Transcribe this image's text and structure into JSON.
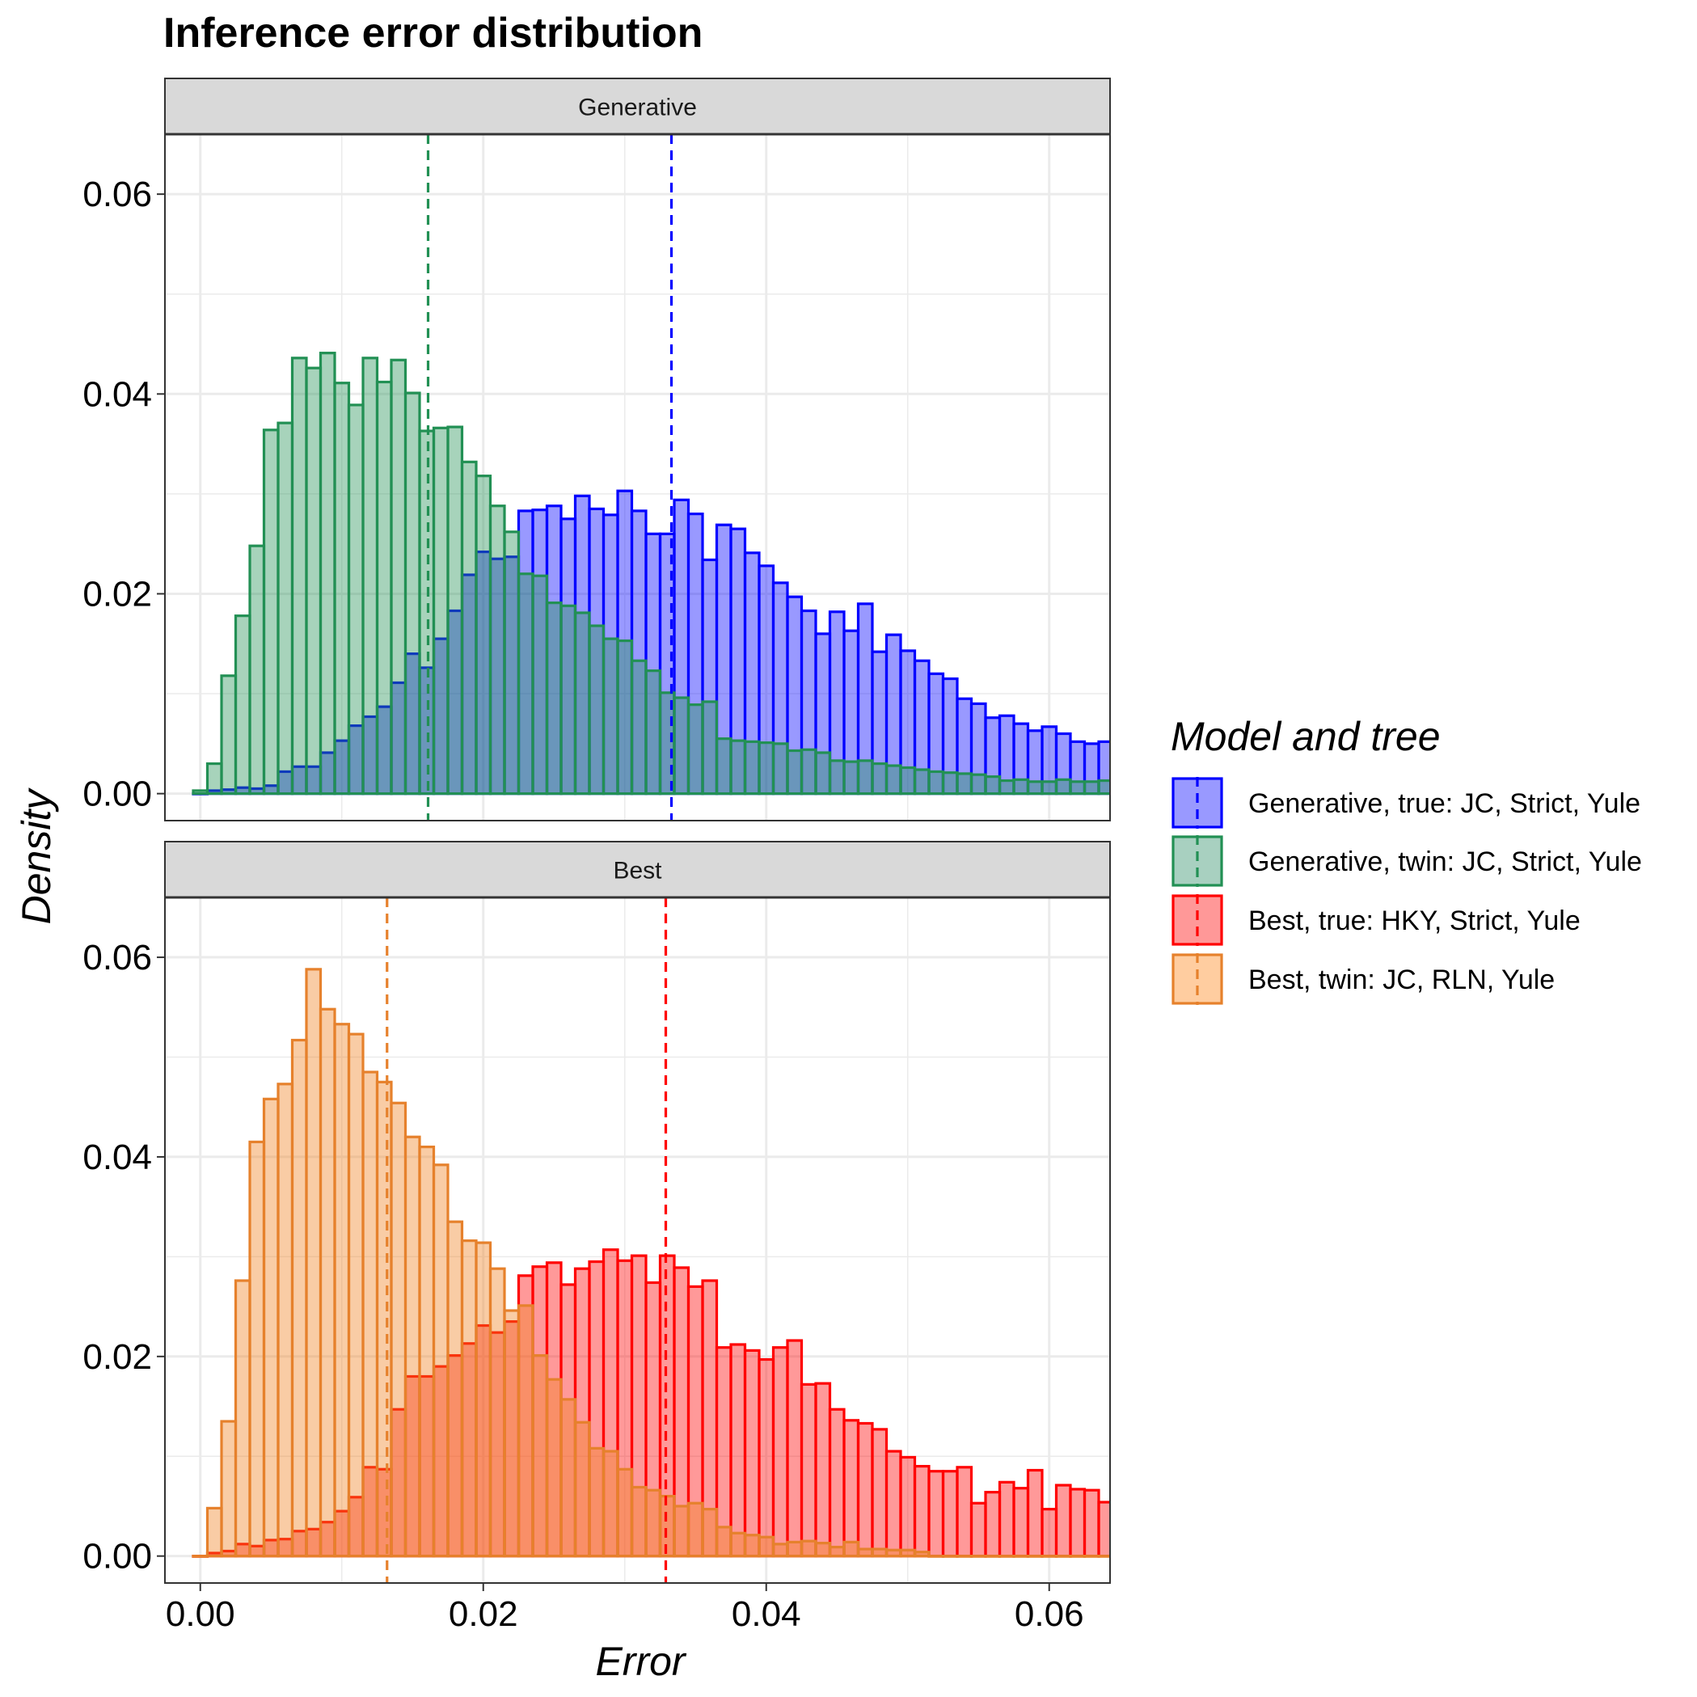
{
  "title": "Inference error distribution",
  "legend": {
    "title": "Model and tree",
    "entries": [
      {
        "label": "Generative, true: JC, Strict, Yule",
        "fill": "#9999ff",
        "stroke": "#0000ff",
        "series": "gen_true"
      },
      {
        "label": "Generative, twin: JC, Strict, Yule",
        "fill": "#a8d0c0",
        "stroke": "#229054",
        "series": "gen_twin"
      },
      {
        "label": "Best, true: HKY, Strict, Yule",
        "fill": "#ff9898",
        "stroke": "#ff0000",
        "series": "best_true"
      },
      {
        "label": "Best, twin: JC, RLN, Yule",
        "fill": "#ffcda0",
        "stroke": "#e6812c",
        "series": "best_twin"
      }
    ]
  },
  "chart_data": {
    "type": "histogram",
    "title": "Inference error distribution",
    "xlabel": "Error",
    "ylabel": "Density",
    "xlim": [
      -0.0025,
      0.0643
    ],
    "ylim": [
      -0.0027,
      0.066
    ],
    "xticks": [
      0,
      0.02,
      0.04,
      0.06
    ],
    "xtick_labels": [
      "0.00",
      "0.02",
      "0.04",
      "0.06"
    ],
    "yticks": [
      0,
      0.02,
      0.04,
      0.06
    ],
    "ytick_labels": [
      "0.00",
      "0.02",
      "0.04",
      "0.06"
    ],
    "grid": true,
    "legend_position": "right",
    "bin_start": -0.0005,
    "bin_width": 0.001,
    "panels": [
      {
        "name": "Generative",
        "series": [
          {
            "key": "gen_true",
            "name": "Generative, true: JC, Strict, Yule",
            "fill": "#0000ff",
            "stroke": "#0000ff",
            "fill_opacity": 0.4,
            "mean": 0.0333,
            "values": [
              0.0,
              0.0003,
              0.0004,
              0.0006,
              0.0005,
              0.0008,
              0.0022,
              0.0027,
              0.0027,
              0.0041,
              0.0053,
              0.0068,
              0.0077,
              0.0087,
              0.0111,
              0.014,
              0.0126,
              0.0155,
              0.0183,
              0.0219,
              0.0242,
              0.0235,
              0.0237,
              0.0283,
              0.0284,
              0.0288,
              0.0275,
              0.0298,
              0.0285,
              0.0279,
              0.0303,
              0.0283,
              0.026,
              0.026,
              0.0294,
              0.028,
              0.0234,
              0.0269,
              0.0265,
              0.0241,
              0.0228,
              0.0211,
              0.0197,
              0.0183,
              0.016,
              0.0182,
              0.0163,
              0.019,
              0.0142,
              0.0159,
              0.0143,
              0.0133,
              0.012,
              0.0115,
              0.0095,
              0.009,
              0.0076,
              0.0078,
              0.007,
              0.0063,
              0.0067,
              0.006,
              0.0052,
              0.005,
              0.0052
            ]
          },
          {
            "key": "gen_twin",
            "name": "Generative, twin: JC, Strict, Yule",
            "fill": "#229054",
            "stroke": "#229054",
            "fill_opacity": 0.4,
            "mean": 0.0161,
            "values": [
              0.0003,
              0.003,
              0.0118,
              0.0178,
              0.0248,
              0.0364,
              0.0371,
              0.0436,
              0.0426,
              0.0441,
              0.0411,
              0.0389,
              0.0436,
              0.0412,
              0.0434,
              0.0401,
              0.0363,
              0.0366,
              0.0367,
              0.0332,
              0.0318,
              0.0288,
              0.0262,
              0.022,
              0.0218,
              0.0191,
              0.0188,
              0.0181,
              0.0168,
              0.0155,
              0.0153,
              0.0133,
              0.0123,
              0.0101,
              0.0096,
              0.0089,
              0.0092,
              0.0055,
              0.0053,
              0.0052,
              0.0051,
              0.005,
              0.0043,
              0.0044,
              0.0041,
              0.0033,
              0.0032,
              0.0033,
              0.003,
              0.0028,
              0.0026,
              0.0024,
              0.0022,
              0.0021,
              0.002,
              0.0019,
              0.0017,
              0.0013,
              0.0014,
              0.0012,
              0.0012,
              0.0014,
              0.0012,
              0.0012,
              0.0013
            ]
          }
        ]
      },
      {
        "name": "Best",
        "series": [
          {
            "key": "best_true",
            "name": "Best, true: HKY, Strict, Yule",
            "fill": "#ff0000",
            "stroke": "#ff0000",
            "fill_opacity": 0.4,
            "mean": 0.0329,
            "values": [
              0.0,
              0.0003,
              0.0005,
              0.0012,
              0.001,
              0.0016,
              0.0017,
              0.0025,
              0.0027,
              0.0034,
              0.0045,
              0.0059,
              0.0089,
              0.0087,
              0.0147,
              0.018,
              0.018,
              0.019,
              0.0201,
              0.0213,
              0.0231,
              0.0224,
              0.0235,
              0.0281,
              0.029,
              0.0294,
              0.0272,
              0.0288,
              0.0295,
              0.0307,
              0.0296,
              0.0301,
              0.0274,
              0.0301,
              0.0289,
              0.027,
              0.0276,
              0.0209,
              0.0212,
              0.0206,
              0.0197,
              0.0209,
              0.0216,
              0.0172,
              0.0173,
              0.0147,
              0.0136,
              0.0133,
              0.0127,
              0.0105,
              0.0099,
              0.009,
              0.0085,
              0.0085,
              0.0089,
              0.0053,
              0.0064,
              0.0074,
              0.0068,
              0.0086,
              0.0047,
              0.0071,
              0.0067,
              0.0066,
              0.0054
            ]
          },
          {
            "key": "best_twin",
            "name": "Best, twin: JC, RLN, Yule",
            "fill": "#f07f1e",
            "stroke": "#e6812c",
            "fill_opacity": 0.4,
            "mean": 0.0132,
            "values": [
              0.0,
              0.0048,
              0.0135,
              0.0276,
              0.0415,
              0.0458,
              0.0473,
              0.0517,
              0.0588,
              0.0548,
              0.0533,
              0.0523,
              0.0485,
              0.0475,
              0.0454,
              0.042,
              0.041,
              0.0392,
              0.0335,
              0.0316,
              0.0314,
              0.0288,
              0.0246,
              0.0251,
              0.0201,
              0.0177,
              0.0157,
              0.0134,
              0.0108,
              0.0105,
              0.0087,
              0.0069,
              0.0066,
              0.006,
              0.005,
              0.0053,
              0.0047,
              0.0029,
              0.0023,
              0.0021,
              0.0019,
              0.0012,
              0.0014,
              0.0015,
              0.0013,
              0.0009,
              0.0014,
              0.0007,
              0.0007,
              0.0006,
              0.0006,
              0.0004,
              0.0,
              0.0,
              0.0,
              0.0,
              0.0,
              0.0,
              0.0,
              0.0,
              0.0,
              0.0,
              0.0,
              0.0,
              0.0
            ]
          }
        ]
      }
    ]
  }
}
